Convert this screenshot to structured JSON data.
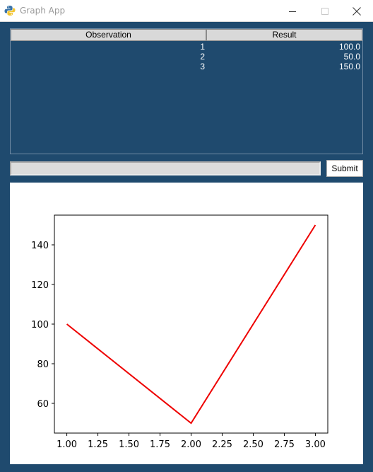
{
  "window": {
    "title": "Graph App",
    "controls": [
      "minimize",
      "maximize",
      "close"
    ]
  },
  "table": {
    "columns": [
      "Observation",
      "Result"
    ],
    "rows": [
      {
        "observation": "1",
        "result": "100.0"
      },
      {
        "observation": "2",
        "result": "50.0"
      },
      {
        "observation": "3",
        "result": "150.0"
      }
    ]
  },
  "input": {
    "value": "",
    "placeholder": ""
  },
  "submit_label": "Submit",
  "colors": {
    "background": "#1f4a6e",
    "line": "#ee0000"
  },
  "chart_data": {
    "type": "line",
    "title": "",
    "xlabel": "",
    "ylabel": "",
    "x": [
      1,
      2,
      3
    ],
    "series": [
      {
        "values": [
          100,
          50,
          150
        ],
        "color": "#ee0000"
      }
    ],
    "xlim": [
      0.9,
      3.1
    ],
    "ylim": [
      45,
      155
    ],
    "xticks": [
      "1.00",
      "1.25",
      "1.50",
      "1.75",
      "2.00",
      "2.25",
      "2.50",
      "2.75",
      "3.00"
    ],
    "yticks": [
      "60",
      "80",
      "100",
      "120",
      "140"
    ],
    "grid": false,
    "legend": false
  }
}
